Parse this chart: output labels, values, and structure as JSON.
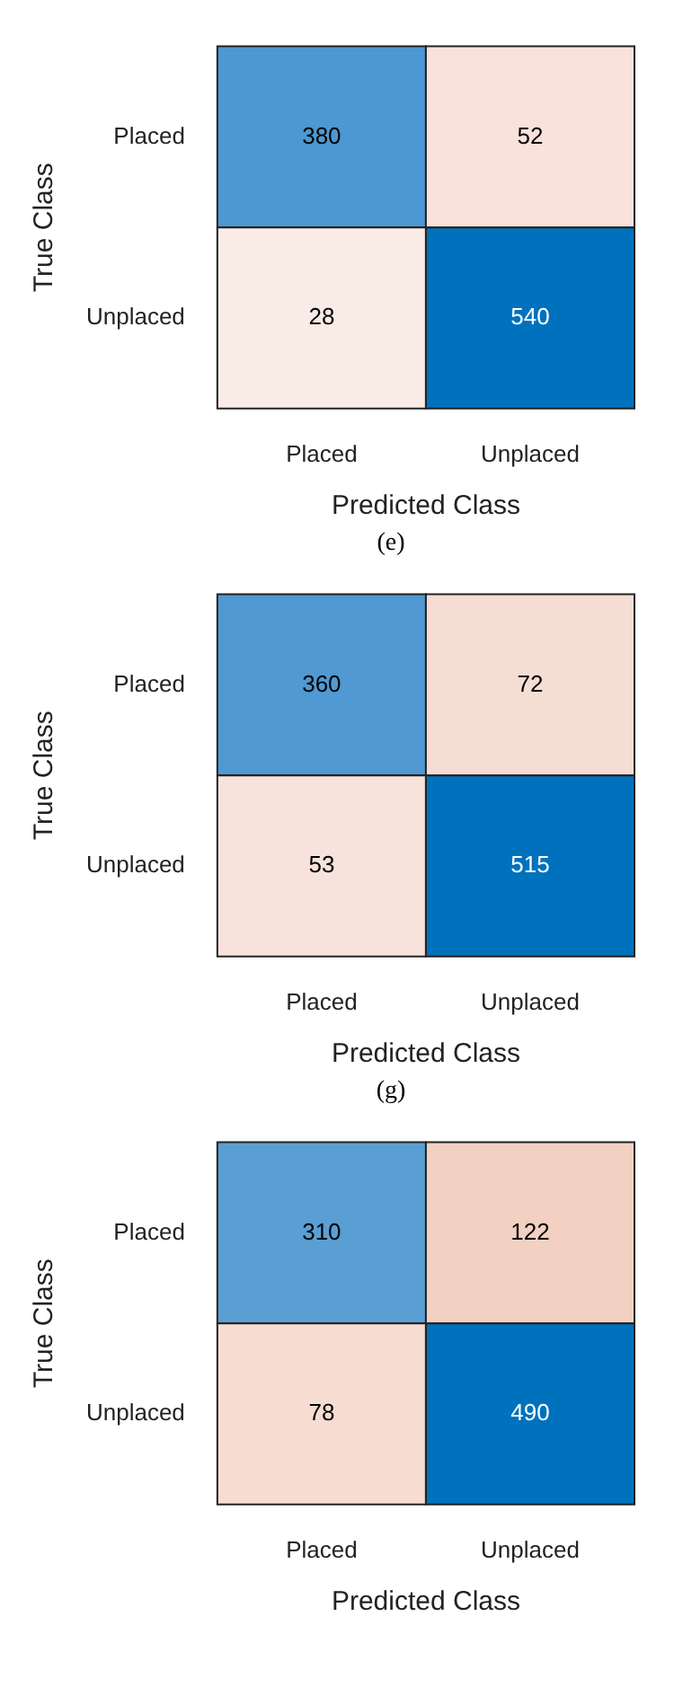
{
  "chart_data": [
    {
      "type": "heatmap",
      "categories": [
        "Placed",
        "Unplaced"
      ],
      "y_categories": [
        "Placed",
        "Unplaced"
      ],
      "cells": [
        [
          380,
          52
        ],
        [
          28,
          540
        ]
      ],
      "colors": [
        [
          "#4d98d2",
          "#f8e2db"
        ],
        [
          "#f9ece7",
          "#0072bd"
        ]
      ],
      "xlabel": "Predicted Class",
      "ylabel": "True Class",
      "data_labels": true,
      "annotations": [
        "(e)"
      ]
    },
    {
      "type": "heatmap",
      "categories": [
        "Placed",
        "Unplaced"
      ],
      "y_categories": [
        "Placed",
        "Unplaced"
      ],
      "cells": [
        [
          360,
          72
        ],
        [
          53,
          515
        ]
      ],
      "colors": [
        [
          "#5099d2",
          "#f6ddd3"
        ],
        [
          "#f8e3dc",
          "#0072bd"
        ]
      ],
      "xlabel": "Predicted Class",
      "ylabel": "True Class",
      "data_labels": true,
      "annotations": [
        "(g)"
      ]
    },
    {
      "type": "heatmap",
      "categories": [
        "Placed",
        "Unplaced"
      ],
      "y_categories": [
        "Placed",
        "Unplaced"
      ],
      "cells": [
        [
          310,
          122
        ],
        [
          78,
          490
        ]
      ],
      "colors": [
        [
          "#5a9fd4",
          "#f2d1c2"
        ],
        [
          "#f6dcd1",
          "#0072bd"
        ]
      ],
      "xlabel": "Predicted Class",
      "ylabel": "True Class",
      "data_labels": true
    }
  ]
}
